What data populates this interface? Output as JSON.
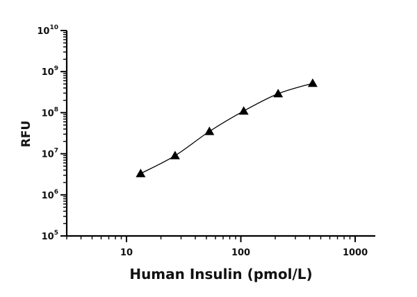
{
  "chart_data": {
    "type": "scatter",
    "title": "",
    "xlabel": "Human Insulin (pmol/L)",
    "ylabel": "RFU",
    "xscale": "log",
    "yscale": "log",
    "xlim": [
      3,
      1500
    ],
    "ylim": [
      100000,
      10000000000
    ],
    "x_ticks": [
      {
        "value": 10,
        "label": "10"
      },
      {
        "value": 100,
        "label": "100"
      },
      {
        "value": 1000,
        "label": "1000"
      }
    ],
    "y_ticks": [
      {
        "value": 100000,
        "base": "10",
        "exp": "5"
      },
      {
        "value": 1000000,
        "base": "10",
        "exp": "6"
      },
      {
        "value": 10000000,
        "base": "10",
        "exp": "7"
      },
      {
        "value": 100000000,
        "base": "10",
        "exp": "8"
      },
      {
        "value": 1000000000,
        "base": "10",
        "exp": "9"
      },
      {
        "value": 10000000000,
        "base": "10",
        "exp": "10"
      }
    ],
    "marker": "triangle",
    "color": "#000000",
    "fit_line": "sigmoidal curve",
    "grid": false,
    "series": [
      {
        "x": [
          13.3,
          26.6,
          53.1,
          106,
          212,
          425
        ],
        "y": [
          3300000,
          9000000,
          35000000,
          110000000,
          290000000,
          520000000
        ]
      }
    ]
  }
}
